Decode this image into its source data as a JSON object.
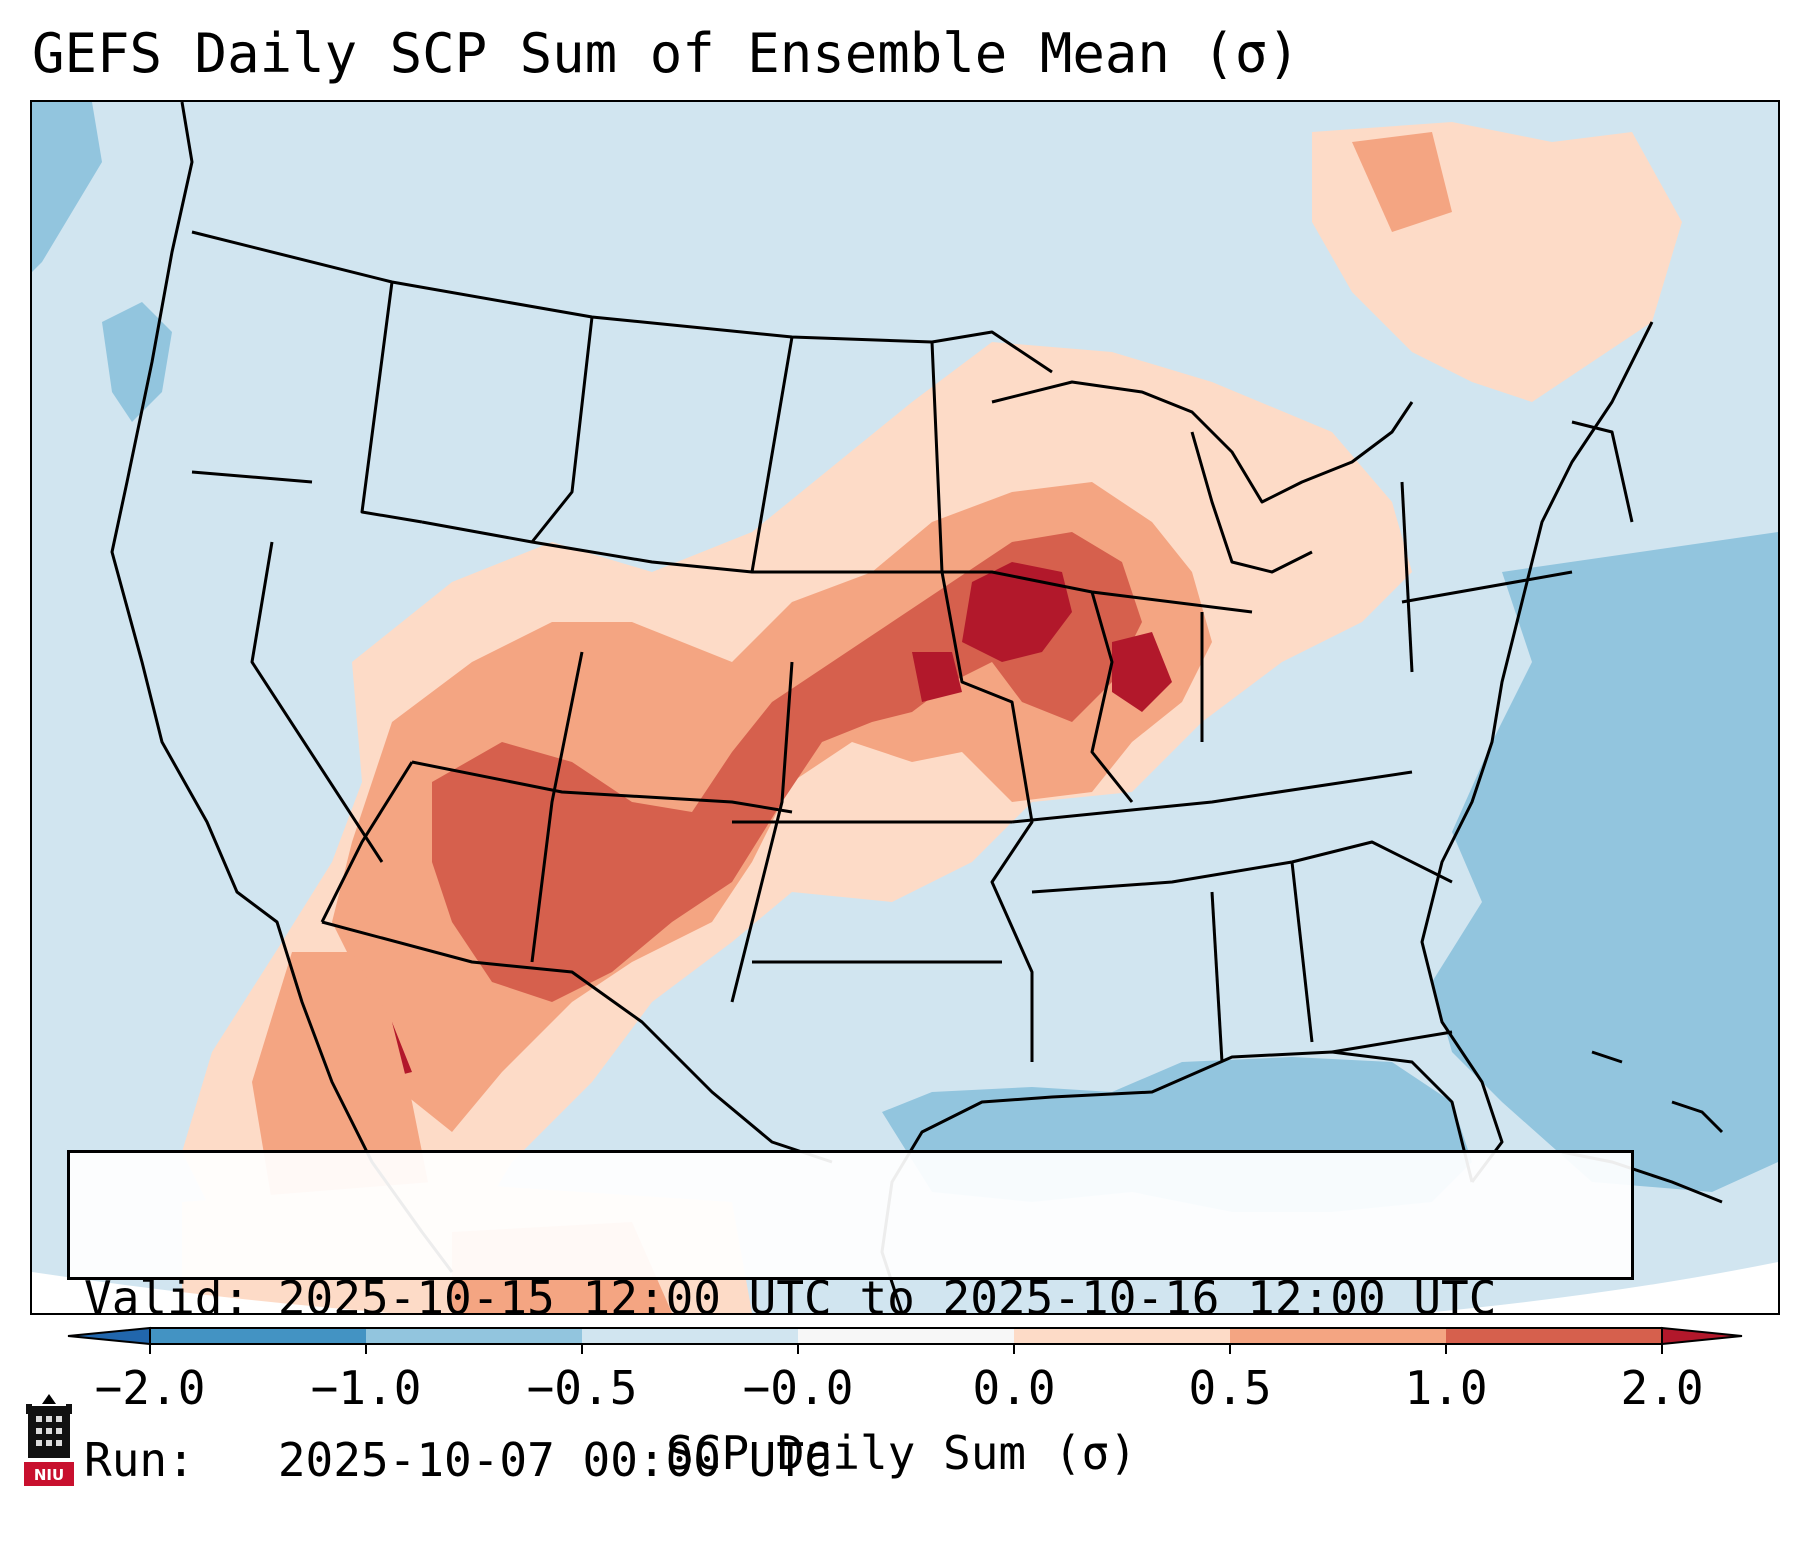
{
  "title": "GEFS Daily SCP Sum of Ensemble Mean (σ)",
  "info": {
    "valid_line": "Valid: 2025-10-15 12:00 UTC to 2025-10-16 12:00 UTC",
    "run_line": "Run:   2025-10-07 00:00 UTC"
  },
  "colorbar": {
    "label": "SCP Daily Sum (σ)",
    "ticks": [
      "−2.0",
      "−1.0",
      "−0.5",
      "−0.0",
      "0.0",
      "0.5",
      "1.0",
      "2.0"
    ],
    "colors": [
      "#4393c3",
      "#92c5de",
      "#d1e5f0",
      "#f7f7f7",
      "#fddbc7",
      "#f4a582",
      "#d6604d",
      "#b2182b",
      "#2166ac"
    ]
  },
  "logo": {
    "text": "NIU"
  }
}
